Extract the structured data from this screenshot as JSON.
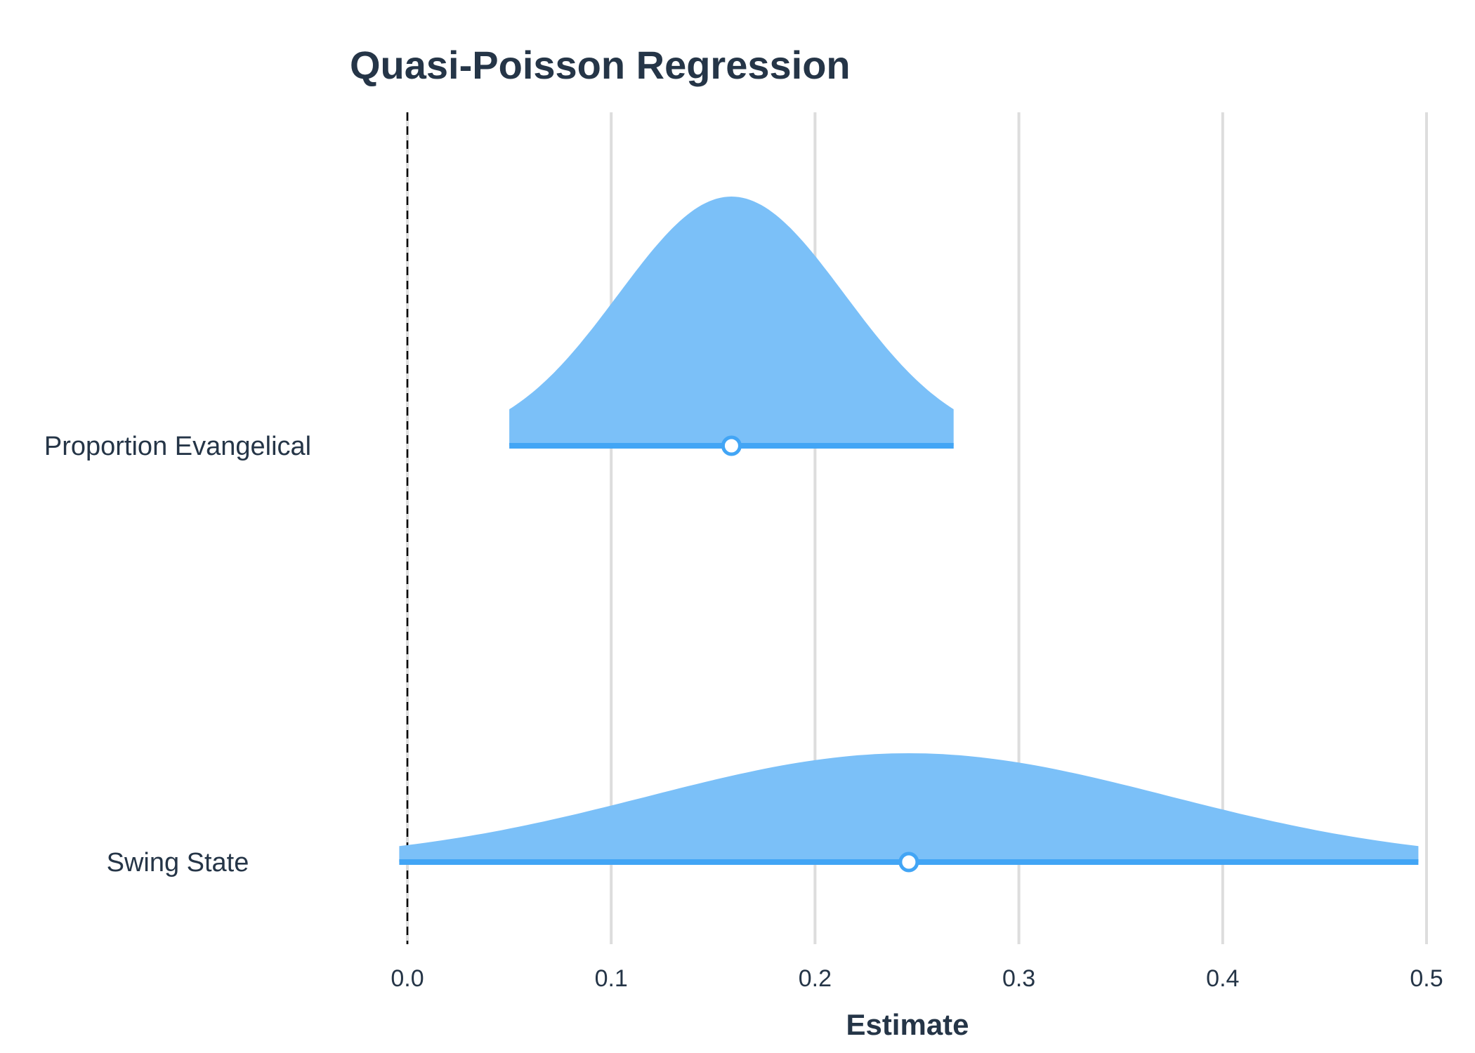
{
  "chart_data": {
    "type": "forest-density",
    "title": "Quasi-Poisson Regression",
    "xlabel": "Estimate",
    "xlim": [
      0.0,
      0.5
    ],
    "xticks": [
      "0.0",
      "0.1",
      "0.2",
      "0.3",
      "0.4",
      "0.5"
    ],
    "reference_line": 0.0,
    "grid": "vertical",
    "terms": [
      {
        "label": "Proportion Evangelical",
        "estimate": 0.159,
        "conf_low": 0.05,
        "conf_high": 0.268
      },
      {
        "label": "Swing State",
        "estimate": 0.246,
        "conf_low": -0.004,
        "conf_high": 0.496
      }
    ]
  },
  "colors": {
    "fill": "#7bc0f8",
    "line": "#42a5f5",
    "text": "#253547",
    "grid": "#dddddd",
    "reference": "#000000"
  }
}
